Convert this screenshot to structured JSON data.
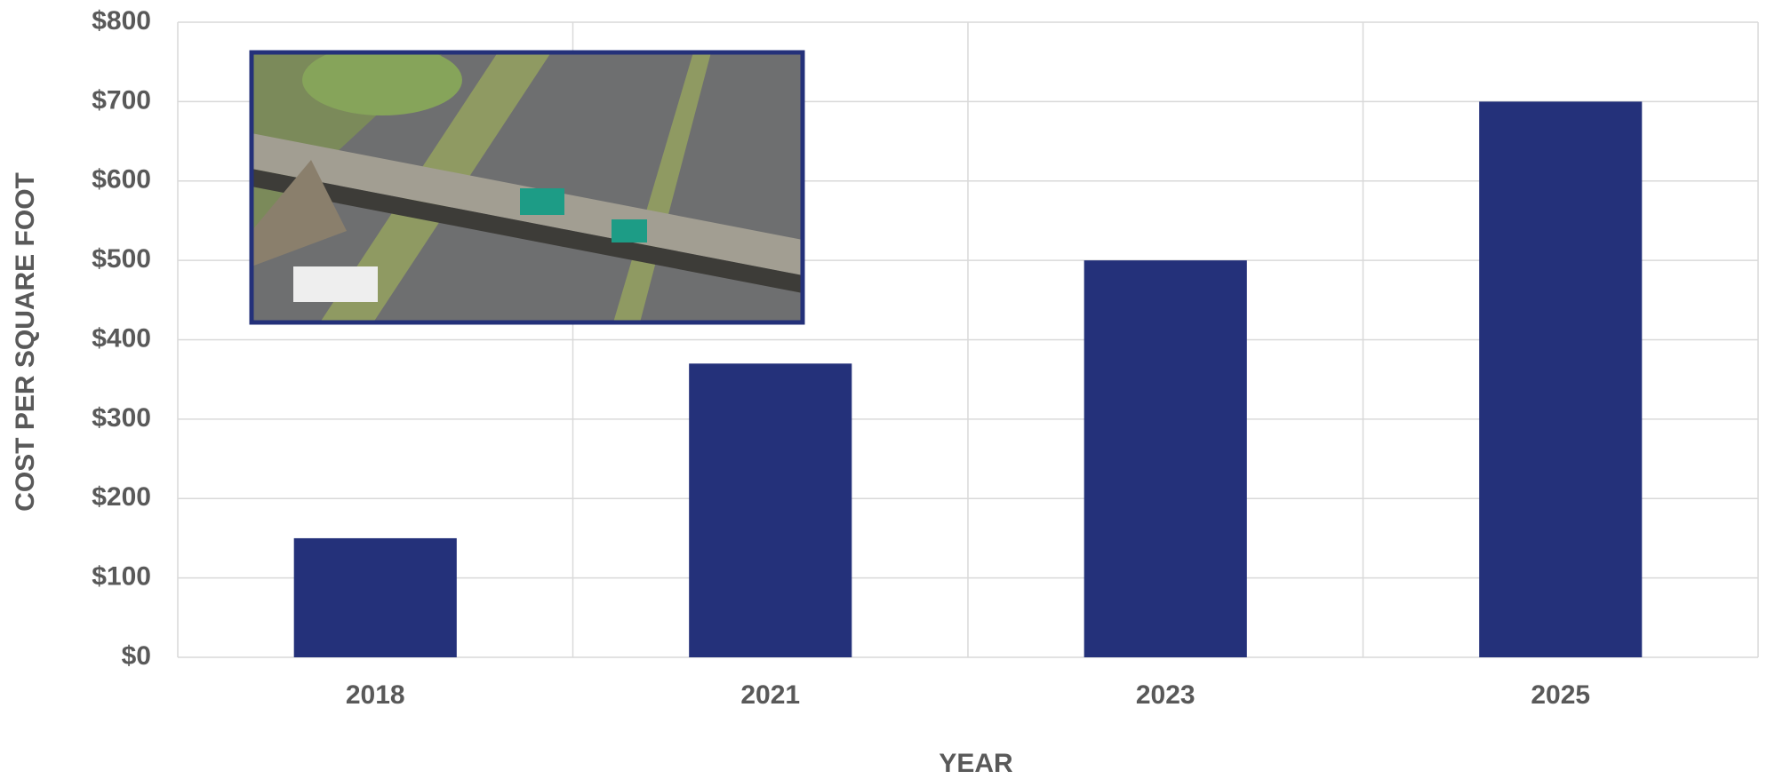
{
  "chart_data": {
    "type": "bar",
    "x_label": "YEAR",
    "y_label": "COST PER SQUARE FOOT",
    "categories": [
      "2018",
      "2021",
      "2023",
      "2025"
    ],
    "values": [
      150,
      370,
      500,
      700
    ],
    "color": "#24317a",
    "ylim": [
      0,
      800
    ],
    "yticks": [
      {
        "value": 0,
        "label": "$0"
      },
      {
        "value": 100,
        "label": "$100"
      },
      {
        "value": 200,
        "label": "$200"
      },
      {
        "value": 300,
        "label": "$300"
      },
      {
        "value": 400,
        "label": "$400"
      },
      {
        "value": 500,
        "label": "$500"
      },
      {
        "value": 600,
        "label": "$600"
      },
      {
        "value": 700,
        "label": "$700"
      },
      {
        "value": 800,
        "label": "$800"
      }
    ],
    "grid": true
  }
}
